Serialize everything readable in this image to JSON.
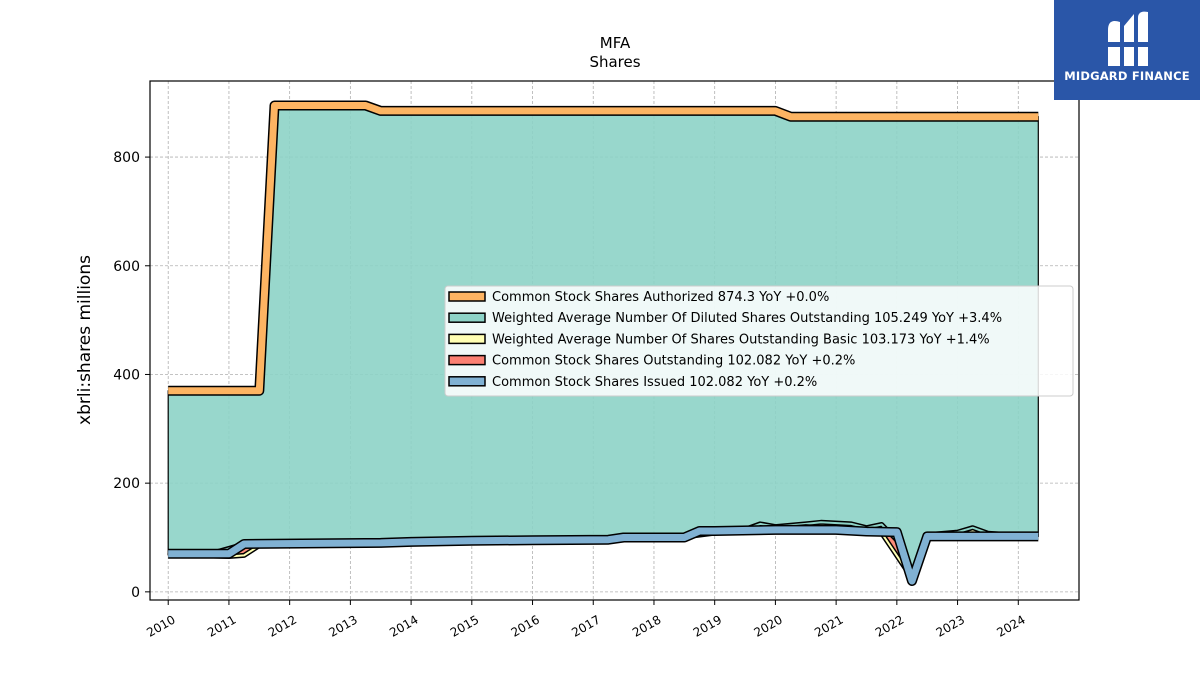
{
  "brand": {
    "name": "MIDGARD FINANCE",
    "logo_icon": "midgard-m-mark-icon",
    "background": "#2a56a8"
  },
  "chart_data": {
    "type": "area",
    "title": "MFA",
    "subtitle": "Shares",
    "xlabel": "",
    "ylabel": "xbrli:shares millions",
    "xlim": [
      2009.7,
      2025.0
    ],
    "ylim": [
      -15,
      940
    ],
    "yticks": [
      0,
      200,
      400,
      600,
      800
    ],
    "xticks": [
      2010,
      2011,
      2012,
      2013,
      2014,
      2015,
      2016,
      2017,
      2018,
      2019,
      2020,
      2021,
      2022,
      2023,
      2024
    ],
    "grid": true,
    "legend_position": "center-right",
    "series": [
      {
        "name": "Common Stock Shares Authorized",
        "legend": "Common Stock Shares Authorized  874.3 YoY +0.0%",
        "color": "#fdb462",
        "width": 7,
        "points": [
          [
            2010.0,
            370
          ],
          [
            2011.5,
            370
          ],
          [
            2011.75,
            895
          ],
          [
            2013.25,
            895
          ],
          [
            2013.5,
            885
          ],
          [
            2020.0,
            885
          ],
          [
            2020.25,
            874.3
          ],
          [
            2024.33,
            874.3
          ]
        ]
      },
      {
        "name": "Weighted Average Number Of Diluted Shares Outstanding",
        "legend": "Weighted Average Number Of Diluted Shares Outstanding  105.249 YoY +3.4%",
        "color": "#8dd3c7",
        "width": 2,
        "points": [
          [
            2010.0,
            70
          ],
          [
            2010.75,
            72
          ],
          [
            2011.0,
            80
          ],
          [
            2011.25,
            88
          ],
          [
            2011.5,
            88
          ],
          [
            2012.0,
            89
          ],
          [
            2013.0,
            90
          ],
          [
            2014.0,
            93
          ],
          [
            2015.0,
            96
          ],
          [
            2016.0,
            98
          ],
          [
            2017.0,
            99
          ],
          [
            2017.5,
            100
          ],
          [
            2018.0,
            101
          ],
          [
            2018.5,
            103
          ],
          [
            2019.0,
            110
          ],
          [
            2019.5,
            115
          ],
          [
            2019.75,
            125
          ],
          [
            2020.0,
            120
          ],
          [
            2020.5,
            125
          ],
          [
            2020.75,
            128
          ],
          [
            2021.25,
            125
          ],
          [
            2021.5,
            118
          ],
          [
            2021.75,
            124
          ],
          [
            2022.0,
            95
          ],
          [
            2022.25,
            30
          ],
          [
            2022.5,
            105
          ],
          [
            2023.0,
            110
          ],
          [
            2023.25,
            118
          ],
          [
            2023.5,
            108
          ],
          [
            2024.0,
            104
          ],
          [
            2024.33,
            105.249
          ]
        ]
      },
      {
        "name": "Weighted Average Number Of Shares Outstanding Basic",
        "legend": "Weighted Average Number Of Shares Outstanding Basic  103.173 YoY +1.4%",
        "color": "#ffffb3",
        "width": 2,
        "points": [
          [
            2010.0,
            68
          ],
          [
            2010.75,
            66
          ],
          [
            2011.0,
            65
          ],
          [
            2011.25,
            67
          ],
          [
            2011.5,
            85
          ],
          [
            2012.0,
            88
          ],
          [
            2013.0,
            89
          ],
          [
            2014.0,
            92
          ],
          [
            2015.0,
            95
          ],
          [
            2016.0,
            97
          ],
          [
            2017.0,
            98
          ],
          [
            2017.5,
            99
          ],
          [
            2018.0,
            100
          ],
          [
            2018.5,
            101
          ],
          [
            2019.0,
            108
          ],
          [
            2019.5,
            112
          ],
          [
            2020.0,
            115
          ],
          [
            2020.5,
            120
          ],
          [
            2021.0,
            117
          ],
          [
            2021.5,
            110
          ],
          [
            2021.75,
            108
          ],
          [
            2022.25,
            25
          ],
          [
            2022.5,
            102
          ],
          [
            2023.0,
            104
          ],
          [
            2023.5,
            103
          ],
          [
            2024.0,
            102
          ],
          [
            2024.33,
            103.173
          ]
        ]
      },
      {
        "name": "Common Stock Shares Outstanding",
        "legend": "Common Stock Shares Outstanding  102.082 YoY +0.2%",
        "color": "#fb8072",
        "width": 4,
        "points": [
          [
            2010.0,
            70
          ],
          [
            2011.0,
            70
          ],
          [
            2011.25,
            88
          ],
          [
            2013.5,
            90
          ],
          [
            2014.0,
            92
          ],
          [
            2015.0,
            94
          ],
          [
            2016.0,
            95
          ],
          [
            2017.25,
            96
          ],
          [
            2017.5,
            100
          ],
          [
            2018.5,
            100
          ],
          [
            2018.75,
            112
          ],
          [
            2019.0,
            112
          ],
          [
            2020.0,
            114
          ],
          [
            2021.0,
            114
          ],
          [
            2021.5,
            111
          ],
          [
            2022.0,
            110
          ],
          [
            2022.25,
            20
          ],
          [
            2022.5,
            102
          ],
          [
            2024.33,
            102.082
          ]
        ]
      },
      {
        "name": "Common Stock Shares Issued",
        "legend": "Common Stock Shares Issued  102.082 YoY +0.2%",
        "color": "#80b1d3",
        "width": 7,
        "points": [
          [
            2010.0,
            70
          ],
          [
            2011.0,
            70
          ],
          [
            2011.25,
            88
          ],
          [
            2013.5,
            90
          ],
          [
            2014.0,
            92
          ],
          [
            2015.0,
            94
          ],
          [
            2016.0,
            95
          ],
          [
            2017.25,
            96
          ],
          [
            2017.5,
            100
          ],
          [
            2018.5,
            100
          ],
          [
            2018.75,
            112
          ],
          [
            2019.0,
            112
          ],
          [
            2020.0,
            114
          ],
          [
            2021.0,
            114
          ],
          [
            2021.5,
            111
          ],
          [
            2022.0,
            110
          ],
          [
            2022.25,
            20
          ],
          [
            2022.5,
            102
          ],
          [
            2024.33,
            102.082
          ]
        ]
      }
    ]
  }
}
